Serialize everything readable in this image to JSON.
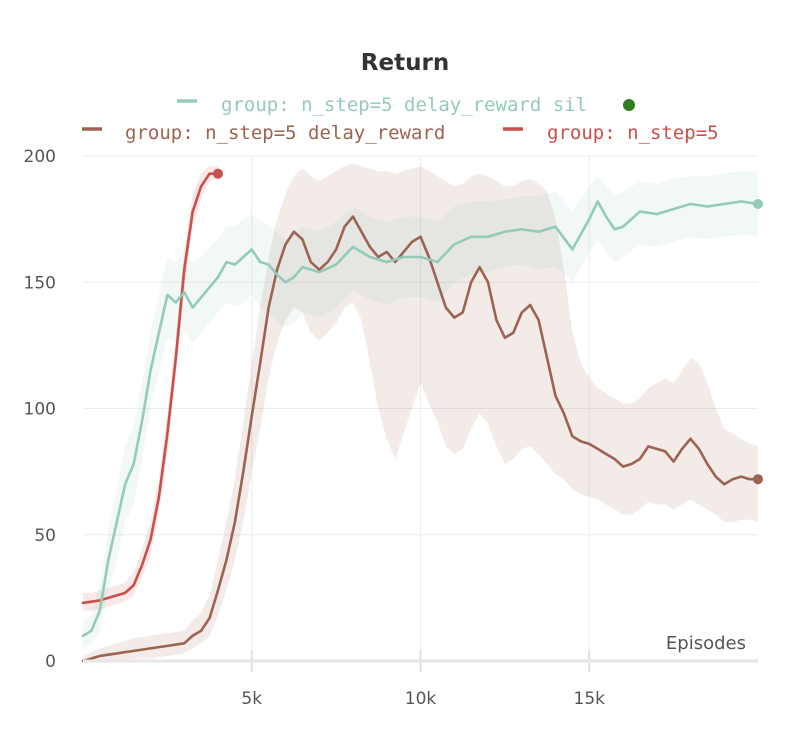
{
  "chart_data": {
    "type": "line",
    "title": "Return",
    "xlabel": "Episodes",
    "ylabel": "",
    "xlim": [
      0,
      20000
    ],
    "ylim": [
      0,
      200
    ],
    "x_ticks": [
      5000,
      10000,
      15000
    ],
    "x_tick_labels": [
      "5k",
      "10k",
      "15k"
    ],
    "y_ticks": [
      0,
      50,
      100,
      150,
      200
    ],
    "y_tick_labels": [
      "0",
      "50",
      "100",
      "150",
      "200"
    ],
    "grid": true,
    "legend_position": "top",
    "legend_marker_color": "#2e7d1f",
    "series": [
      {
        "name": "group: n_step=5 delay_reward sil",
        "color": "#93cbb8",
        "x": [
          0,
          250,
          500,
          750,
          1000,
          1250,
          1500,
          1750,
          2000,
          2250,
          2500,
          2750,
          3000,
          3250,
          3500,
          3750,
          4000,
          4250,
          4500,
          4750,
          5000,
          5250,
          5500,
          5750,
          6000,
          6250,
          6500,
          7000,
          7500,
          8000,
          8500,
          9000,
          9500,
          10000,
          10500,
          11000,
          11500,
          12000,
          12500,
          13000,
          13500,
          14000,
          14500,
          15000,
          15250,
          15500,
          15750,
          16000,
          16500,
          17000,
          17500,
          18000,
          18500,
          19000,
          19500,
          20000
        ],
        "values": [
          10,
          12,
          20,
          40,
          55,
          70,
          78,
          95,
          115,
          130,
          145,
          142,
          146,
          140,
          144,
          148,
          152,
          158,
          157,
          160,
          163,
          158,
          157,
          153,
          150,
          152,
          156,
          154,
          157,
          164,
          160,
          158,
          160,
          160,
          158,
          165,
          168,
          168,
          170,
          171,
          170,
          172,
          163,
          175,
          182,
          176,
          171,
          172,
          178,
          177,
          179,
          181,
          180,
          181,
          182,
          181
        ],
        "band_low": [
          5,
          7,
          12,
          28,
          40,
          55,
          62,
          80,
          100,
          115,
          128,
          126,
          130,
          126,
          130,
          134,
          138,
          142,
          140,
          142,
          145,
          140,
          138,
          134,
          132,
          134,
          138,
          136,
          140,
          147,
          143,
          141,
          144,
          144,
          142,
          150,
          153,
          154,
          156,
          157,
          155,
          156,
          150,
          162,
          167,
          162,
          158,
          160,
          165,
          164,
          166,
          168,
          167,
          168,
          169,
          168
        ],
        "band_high": [
          16,
          18,
          30,
          52,
          68,
          85,
          93,
          110,
          130,
          145,
          160,
          158,
          162,
          158,
          160,
          164,
          167,
          172,
          172,
          175,
          177,
          174,
          173,
          170,
          167,
          169,
          172,
          170,
          174,
          180,
          176,
          174,
          176,
          176,
          174,
          180,
          182,
          182,
          183,
          184,
          184,
          186,
          178,
          188,
          192,
          188,
          184,
          186,
          190,
          189,
          191,
          192,
          192,
          193,
          194,
          194
        ]
      },
      {
        "name": "group: n_step=5 delay_reward",
        "color": "#9b6350",
        "x": [
          0,
          500,
          1000,
          1500,
          2000,
          2500,
          3000,
          3250,
          3500,
          3750,
          4000,
          4250,
          4500,
          4750,
          5000,
          5250,
          5500,
          5750,
          6000,
          6250,
          6500,
          6750,
          7000,
          7250,
          7500,
          7750,
          8000,
          8250,
          8500,
          8750,
          9000,
          9250,
          9500,
          9750,
          10000,
          10250,
          10500,
          10750,
          11000,
          11250,
          11500,
          11750,
          12000,
          12250,
          12500,
          12750,
          13000,
          13250,
          13500,
          13750,
          14000,
          14250,
          14500,
          14750,
          15000,
          15250,
          15500,
          15750,
          16000,
          16250,
          16500,
          16750,
          17000,
          17250,
          17500,
          17750,
          18000,
          18250,
          18500,
          18750,
          19000,
          19250,
          19500,
          19750,
          20000
        ],
        "values": [
          0,
          2,
          3,
          4,
          5,
          6,
          7,
          10,
          12,
          17,
          28,
          40,
          55,
          75,
          97,
          118,
          140,
          155,
          165,
          170,
          167,
          158,
          155,
          158,
          163,
          172,
          176,
          170,
          164,
          160,
          162,
          158,
          162,
          166,
          168,
          160,
          150,
          140,
          136,
          138,
          150,
          156,
          150,
          135,
          128,
          130,
          138,
          141,
          135,
          120,
          105,
          98,
          89,
          87,
          86,
          84,
          82,
          80,
          77,
          78,
          80,
          85,
          84,
          83,
          79,
          84,
          88,
          84,
          78,
          73,
          70,
          72,
          73,
          72,
          72
        ],
        "band_low": [
          0,
          0,
          0,
          1,
          1,
          2,
          3,
          5,
          7,
          10,
          18,
          28,
          40,
          55,
          75,
          92,
          112,
          126,
          135,
          140,
          138,
          130,
          127,
          130,
          134,
          140,
          142,
          135,
          118,
          100,
          88,
          80,
          90,
          100,
          110,
          102,
          95,
          85,
          82,
          84,
          92,
          98,
          94,
          85,
          78,
          80,
          84,
          85,
          82,
          78,
          74,
          72,
          68,
          66,
          65,
          64,
          62,
          60,
          58,
          58,
          60,
          63,
          62,
          62,
          60,
          62,
          64,
          62,
          60,
          58,
          55,
          55,
          56,
          56,
          55
        ],
        "band_high": [
          2,
          5,
          7,
          9,
          10,
          11,
          12,
          16,
          19,
          26,
          40,
          55,
          72,
          95,
          118,
          140,
          160,
          175,
          185,
          192,
          195,
          192,
          190,
          192,
          194,
          196,
          197,
          196,
          195,
          194,
          194,
          193,
          194,
          195,
          196,
          194,
          192,
          190,
          188,
          189,
          192,
          193,
          192,
          190,
          188,
          188,
          190,
          191,
          189,
          186,
          175,
          155,
          130,
          118,
          112,
          108,
          106,
          104,
          102,
          102,
          104,
          108,
          110,
          112,
          110,
          115,
          120,
          118,
          110,
          100,
          92,
          90,
          88,
          86,
          85
        ]
      },
      {
        "name": "group: n_step=5",
        "color": "#c94f4a",
        "x": [
          0,
          250,
          500,
          750,
          1000,
          1250,
          1500,
          1750,
          2000,
          2250,
          2500,
          2750,
          3000,
          3250,
          3500,
          3750,
          4000
        ],
        "values": [
          23,
          23.5,
          24,
          25,
          26,
          27,
          30,
          38,
          48,
          65,
          90,
          120,
          155,
          178,
          188,
          193,
          193
        ],
        "band_low": [
          20,
          20,
          20.5,
          21.5,
          22.5,
          23.5,
          26,
          33,
          42,
          58,
          82,
          112,
          147,
          172,
          183,
          190,
          191
        ],
        "band_high": [
          27,
          27,
          28,
          29,
          30,
          31,
          35,
          44,
          55,
          73,
          98,
          128,
          163,
          185,
          193,
          196,
          196
        ]
      }
    ]
  }
}
